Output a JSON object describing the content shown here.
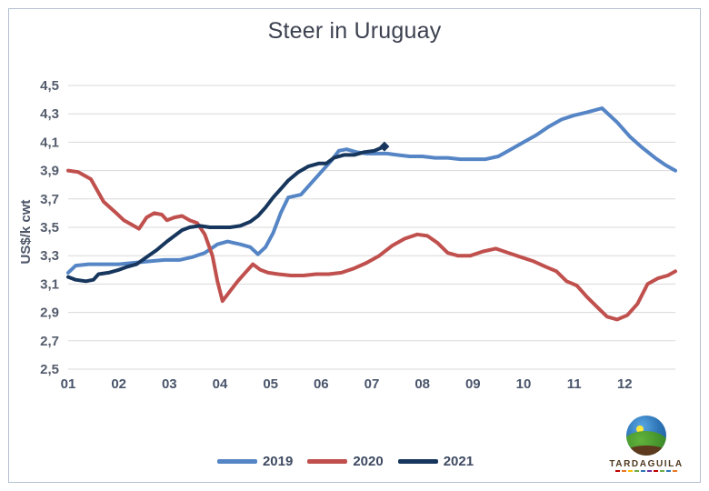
{
  "chart_data": {
    "type": "line",
    "title": "Steer in Uruguay",
    "ylabel": "US$/k cwt",
    "ylim": [
      2.5,
      4.5
    ],
    "xlim": [
      1,
      13
    ],
    "grid": "horizontal",
    "legend_position": "bottom-center",
    "y_ticks": [
      {
        "v": 4.5,
        "label": "4,5"
      },
      {
        "v": 4.3,
        "label": "4,3"
      },
      {
        "v": 4.1,
        "label": "4,1"
      },
      {
        "v": 3.9,
        "label": "3,9"
      },
      {
        "v": 3.7,
        "label": "3,7"
      },
      {
        "v": 3.5,
        "label": "3,5"
      },
      {
        "v": 3.3,
        "label": "3,3"
      },
      {
        "v": 3.1,
        "label": "3,1"
      },
      {
        "v": 2.9,
        "label": "2,9"
      },
      {
        "v": 2.7,
        "label": "2,7"
      },
      {
        "v": 2.5,
        "label": "2,5"
      }
    ],
    "x_ticks": [
      {
        "v": 1,
        "label": "01"
      },
      {
        "v": 2,
        "label": "02"
      },
      {
        "v": 3,
        "label": "03"
      },
      {
        "v": 4,
        "label": "04"
      },
      {
        "v": 5,
        "label": "05"
      },
      {
        "v": 6,
        "label": "06"
      },
      {
        "v": 7,
        "label": "07"
      },
      {
        "v": 8,
        "label": "08"
      },
      {
        "v": 9,
        "label": "09"
      },
      {
        "v": 10,
        "label": "10"
      },
      {
        "v": 11,
        "label": "11"
      },
      {
        "v": 12,
        "label": "12"
      }
    ],
    "series": [
      {
        "name": "2019",
        "color": "#5585C5",
        "end_marker": false,
        "points": [
          [
            1,
            3.18
          ],
          [
            1.15,
            3.23
          ],
          [
            1.4,
            3.24
          ],
          [
            1.7,
            3.24
          ],
          [
            2,
            3.24
          ],
          [
            2.3,
            3.25
          ],
          [
            2.6,
            3.26
          ],
          [
            2.9,
            3.27
          ],
          [
            3.2,
            3.27
          ],
          [
            3.45,
            3.29
          ],
          [
            3.7,
            3.32
          ],
          [
            3.95,
            3.38
          ],
          [
            4.15,
            3.4
          ],
          [
            4.4,
            3.38
          ],
          [
            4.6,
            3.36
          ],
          [
            4.75,
            3.31
          ],
          [
            4.9,
            3.36
          ],
          [
            5.05,
            3.46
          ],
          [
            5.2,
            3.6
          ],
          [
            5.35,
            3.71
          ],
          [
            5.6,
            3.73
          ],
          [
            5.8,
            3.81
          ],
          [
            6,
            3.89
          ],
          [
            6.2,
            3.97
          ],
          [
            6.35,
            4.04
          ],
          [
            6.5,
            4.05
          ],
          [
            6.7,
            4.03
          ],
          [
            6.9,
            4.02
          ],
          [
            7.1,
            4.02
          ],
          [
            7.3,
            4.02
          ],
          [
            7.5,
            4.01
          ],
          [
            7.75,
            4
          ],
          [
            8,
            4
          ],
          [
            8.25,
            3.99
          ],
          [
            8.5,
            3.99
          ],
          [
            8.75,
            3.98
          ],
          [
            9,
            3.98
          ],
          [
            9.25,
            3.98
          ],
          [
            9.5,
            4
          ],
          [
            9.75,
            4.05
          ],
          [
            10,
            4.1
          ],
          [
            10.25,
            4.15
          ],
          [
            10.5,
            4.21
          ],
          [
            10.75,
            4.26
          ],
          [
            11,
            4.29
          ],
          [
            11.25,
            4.31
          ],
          [
            11.55,
            4.34
          ],
          [
            11.85,
            4.24
          ],
          [
            12.1,
            4.14
          ],
          [
            12.35,
            4.06
          ],
          [
            12.6,
            3.99
          ],
          [
            12.8,
            3.94
          ],
          [
            13,
            3.9
          ]
        ]
      },
      {
        "name": "2020",
        "color": "#C0504D",
        "end_marker": false,
        "points": [
          [
            1,
            3.9
          ],
          [
            1.2,
            3.89
          ],
          [
            1.45,
            3.84
          ],
          [
            1.7,
            3.68
          ],
          [
            1.95,
            3.6
          ],
          [
            2.1,
            3.55
          ],
          [
            2.25,
            3.52
          ],
          [
            2.4,
            3.49
          ],
          [
            2.55,
            3.57
          ],
          [
            2.7,
            3.6
          ],
          [
            2.85,
            3.59
          ],
          [
            2.95,
            3.55
          ],
          [
            3.1,
            3.57
          ],
          [
            3.25,
            3.58
          ],
          [
            3.4,
            3.55
          ],
          [
            3.55,
            3.53
          ],
          [
            3.7,
            3.45
          ],
          [
            3.85,
            3.3
          ],
          [
            3.95,
            3.12
          ],
          [
            4.05,
            2.98
          ],
          [
            4.2,
            3.05
          ],
          [
            4.35,
            3.12
          ],
          [
            4.5,
            3.18
          ],
          [
            4.65,
            3.24
          ],
          [
            4.8,
            3.2
          ],
          [
            4.95,
            3.18
          ],
          [
            5.15,
            3.17
          ],
          [
            5.4,
            3.16
          ],
          [
            5.65,
            3.16
          ],
          [
            5.9,
            3.17
          ],
          [
            6.15,
            3.17
          ],
          [
            6.4,
            3.18
          ],
          [
            6.65,
            3.21
          ],
          [
            6.9,
            3.25
          ],
          [
            7.15,
            3.3
          ],
          [
            7.4,
            3.37
          ],
          [
            7.65,
            3.42
          ],
          [
            7.9,
            3.45
          ],
          [
            8.1,
            3.44
          ],
          [
            8.3,
            3.39
          ],
          [
            8.5,
            3.32
          ],
          [
            8.7,
            3.3
          ],
          [
            8.95,
            3.3
          ],
          [
            9.2,
            3.33
          ],
          [
            9.45,
            3.35
          ],
          [
            9.7,
            3.32
          ],
          [
            9.95,
            3.29
          ],
          [
            10.2,
            3.26
          ],
          [
            10.45,
            3.22
          ],
          [
            10.65,
            3.19
          ],
          [
            10.85,
            3.12
          ],
          [
            11.05,
            3.09
          ],
          [
            11.25,
            3.01
          ],
          [
            11.45,
            2.94
          ],
          [
            11.65,
            2.87
          ],
          [
            11.85,
            2.85
          ],
          [
            12.05,
            2.88
          ],
          [
            12.25,
            2.96
          ],
          [
            12.45,
            3.1
          ],
          [
            12.65,
            3.14
          ],
          [
            12.85,
            3.16
          ],
          [
            13,
            3.19
          ]
        ]
      },
      {
        "name": "2021",
        "color": "#17365D",
        "end_marker": true,
        "points": [
          [
            1,
            3.15
          ],
          [
            1.15,
            3.13
          ],
          [
            1.35,
            3.12
          ],
          [
            1.5,
            3.13
          ],
          [
            1.6,
            3.17
          ],
          [
            1.8,
            3.18
          ],
          [
            2,
            3.2
          ],
          [
            2.15,
            3.22
          ],
          [
            2.35,
            3.24
          ],
          [
            2.55,
            3.29
          ],
          [
            2.75,
            3.34
          ],
          [
            2.95,
            3.4
          ],
          [
            3.1,
            3.44
          ],
          [
            3.25,
            3.48
          ],
          [
            3.4,
            3.5
          ],
          [
            3.6,
            3.51
          ],
          [
            3.8,
            3.5
          ],
          [
            4,
            3.5
          ],
          [
            4.2,
            3.5
          ],
          [
            4.4,
            3.51
          ],
          [
            4.6,
            3.54
          ],
          [
            4.75,
            3.58
          ],
          [
            4.9,
            3.64
          ],
          [
            5.05,
            3.71
          ],
          [
            5.2,
            3.77
          ],
          [
            5.35,
            3.83
          ],
          [
            5.55,
            3.89
          ],
          [
            5.75,
            3.93
          ],
          [
            5.95,
            3.95
          ],
          [
            6.1,
            3.95
          ],
          [
            6.25,
            3.99
          ],
          [
            6.45,
            4.01
          ],
          [
            6.65,
            4.01
          ],
          [
            6.85,
            4.03
          ],
          [
            7.05,
            4.04
          ],
          [
            7.25,
            4.07
          ]
        ]
      }
    ]
  },
  "logo": {
    "name": "TARDAGUILA"
  }
}
